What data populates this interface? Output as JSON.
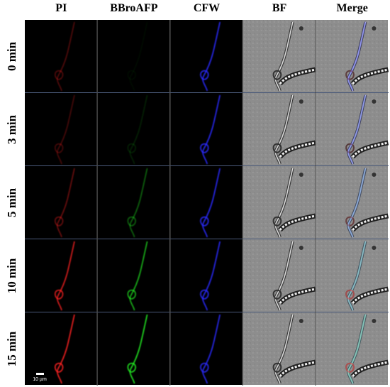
{
  "header": {
    "columns": [
      "PI",
      "BBroAFP",
      "CFW",
      "BF",
      "Merge"
    ]
  },
  "rows": [
    "0 min",
    "3 min",
    "5 min",
    "10 min",
    "15 min"
  ],
  "scale_bar": "10 µm"
}
